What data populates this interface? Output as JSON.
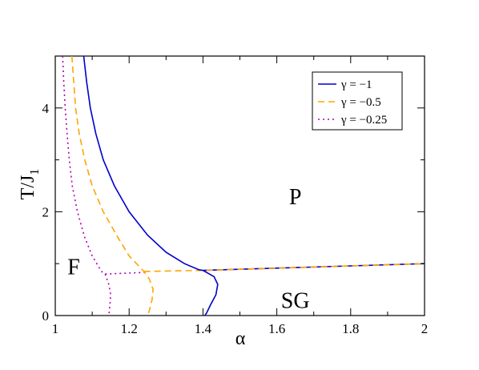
{
  "chart_data": {
    "type": "line",
    "title": "",
    "xlabel": "α",
    "ylabel": "T/J",
    "ylabel_subscript": "1",
    "xlim": [
      1,
      2
    ],
    "ylim": [
      0,
      5
    ],
    "x_ticks": [
      1,
      1.2,
      1.4,
      1.6,
      1.8,
      2
    ],
    "x_tick_labels": [
      "1",
      "1.2",
      "1.4",
      "1.6",
      "1.8",
      "2"
    ],
    "y_ticks": [
      0,
      2,
      4
    ],
    "y_tick_labels": [
      "0",
      "2",
      "4"
    ],
    "grid": false,
    "legend_position": "top-right",
    "annotations": [
      {
        "text": "P",
        "x": 1.65,
        "y": 2.3
      },
      {
        "text": "F",
        "x": 1.05,
        "y": 0.95
      },
      {
        "text": "SG",
        "x": 1.65,
        "y": 0.3
      }
    ],
    "series": [
      {
        "name": "γ = −1",
        "color": "#0000cc",
        "dash": "solid",
        "points": [
          [
            1.077,
            5.0
          ],
          [
            1.085,
            4.5
          ],
          [
            1.095,
            4.0
          ],
          [
            1.11,
            3.5
          ],
          [
            1.13,
            3.0
          ],
          [
            1.16,
            2.5
          ],
          [
            1.2,
            2.0
          ],
          [
            1.25,
            1.55
          ],
          [
            1.3,
            1.22
          ],
          [
            1.35,
            1.0
          ],
          [
            1.39,
            0.88
          ],
          [
            1.4,
            0.87
          ],
          [
            1.43,
            0.75
          ],
          [
            1.44,
            0.6
          ],
          [
            1.435,
            0.4
          ],
          [
            1.42,
            0.2
          ],
          [
            1.41,
            0.05
          ],
          [
            1.405,
            0
          ]
        ]
      },
      {
        "name": "γ = −0.5",
        "color": "#ffa500",
        "dash": "dashed",
        "points": [
          [
            1.045,
            5.0
          ],
          [
            1.05,
            4.5
          ],
          [
            1.055,
            4.0
          ],
          [
            1.065,
            3.5
          ],
          [
            1.08,
            3.0
          ],
          [
            1.1,
            2.5
          ],
          [
            1.13,
            2.0
          ],
          [
            1.17,
            1.5
          ],
          [
            1.2,
            1.15
          ],
          [
            1.24,
            0.85
          ],
          [
            1.255,
            0.7
          ],
          [
            1.265,
            0.5
          ],
          [
            1.262,
            0.3
          ],
          [
            1.255,
            0.1
          ],
          [
            1.25,
            0
          ]
        ]
      },
      {
        "name": "γ = −0.25",
        "color": "#b000b0",
        "dash": "dotted",
        "points": [
          [
            1.02,
            5.0
          ],
          [
            1.023,
            4.5
          ],
          [
            1.027,
            4.0
          ],
          [
            1.032,
            3.5
          ],
          [
            1.038,
            3.0
          ],
          [
            1.046,
            2.5
          ],
          [
            1.06,
            2.0
          ],
          [
            1.08,
            1.5
          ],
          [
            1.1,
            1.15
          ],
          [
            1.125,
            0.85
          ],
          [
            1.135,
            0.8
          ],
          [
            1.145,
            0.6
          ],
          [
            1.15,
            0.4
          ],
          [
            1.148,
            0.2
          ],
          [
            1.145,
            0
          ]
        ]
      }
    ],
    "transition_line": {
      "comment_free": true,
      "points": [
        [
          1.24,
          0.85
        ],
        [
          1.4,
          0.87
        ],
        [
          2.0,
          1.0
        ]
      ],
      "colors": [
        "#ffa500",
        "#0000cc"
      ]
    },
    "lower_lines": {
      "gamma_m025_horizontal": [
        [
          1.135,
          0.8
        ],
        [
          1.24,
          0.83
        ]
      ]
    }
  }
}
